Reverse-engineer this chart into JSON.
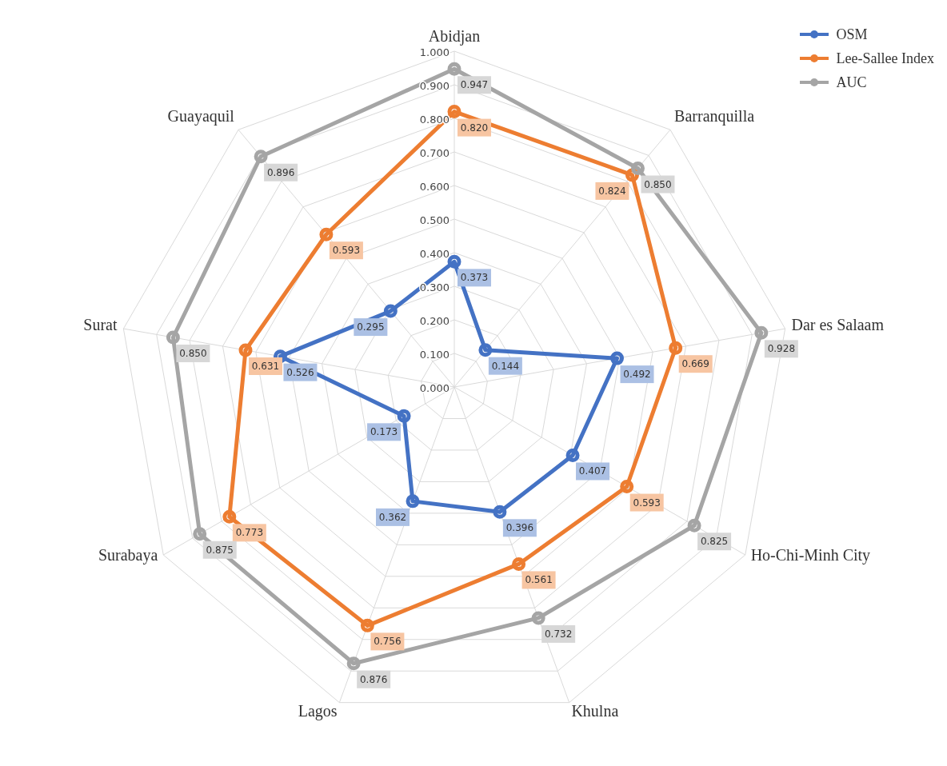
{
  "chart_data": {
    "type": "radar",
    "categories": [
      "Abidjan",
      "Barranquilla",
      "Dar es Salaam",
      "Ho-Chi-Minh City",
      "Khulna",
      "Lagos",
      "Surabaya",
      "Surat",
      "Guayaquil"
    ],
    "series": [
      {
        "name": "OSM",
        "color": "#4472c4",
        "values": [
          0.373,
          0.144,
          0.492,
          0.407,
          0.396,
          0.362,
          0.173,
          0.526,
          0.295
        ],
        "value_labels": [
          "0.373",
          "0.144",
          "0.492",
          "0.407",
          "0.396",
          "0.362",
          "0.173",
          "0.526",
          "0.295"
        ]
      },
      {
        "name": "Lee-Sallee Index",
        "color": "#ed7d31",
        "values": [
          0.82,
          0.824,
          0.669,
          0.593,
          0.561,
          0.756,
          0.773,
          0.631,
          0.593
        ],
        "value_labels": [
          "0.820",
          "0.824",
          "0.669",
          "0.593",
          "0.561",
          "0.756",
          "0.773",
          "0.631",
          "0.593"
        ]
      },
      {
        "name": "AUC",
        "color": "#a5a5a5",
        "values": [
          0.947,
          0.85,
          0.928,
          0.825,
          0.732,
          0.876,
          0.875,
          0.85,
          0.896
        ],
        "value_labels": [
          "0.947",
          "0.850",
          "0.928",
          "0.825",
          "0.732",
          "0.876",
          "0.875",
          "0.850",
          "0.896"
        ]
      }
    ],
    "ylim": [
      0,
      1
    ],
    "yticks": [
      {
        "value": 0,
        "label": "0.000"
      },
      {
        "value": 0.1,
        "label": "0.100"
      },
      {
        "value": 0.2,
        "label": "0.200"
      },
      {
        "value": 0.3,
        "label": "0.300"
      },
      {
        "value": 0.4,
        "label": "0.400"
      },
      {
        "value": 0.5,
        "label": "0.500"
      },
      {
        "value": 0.6,
        "label": "0.600"
      },
      {
        "value": 0.7,
        "label": "0.700"
      },
      {
        "value": 0.8,
        "label": "0.800"
      },
      {
        "value": 0.9,
        "label": "0.900"
      },
      {
        "value": 1,
        "label": "1.000"
      }
    ],
    "grid": true,
    "legend": "top right",
    "marker": "circle",
    "line_style": "solid"
  }
}
